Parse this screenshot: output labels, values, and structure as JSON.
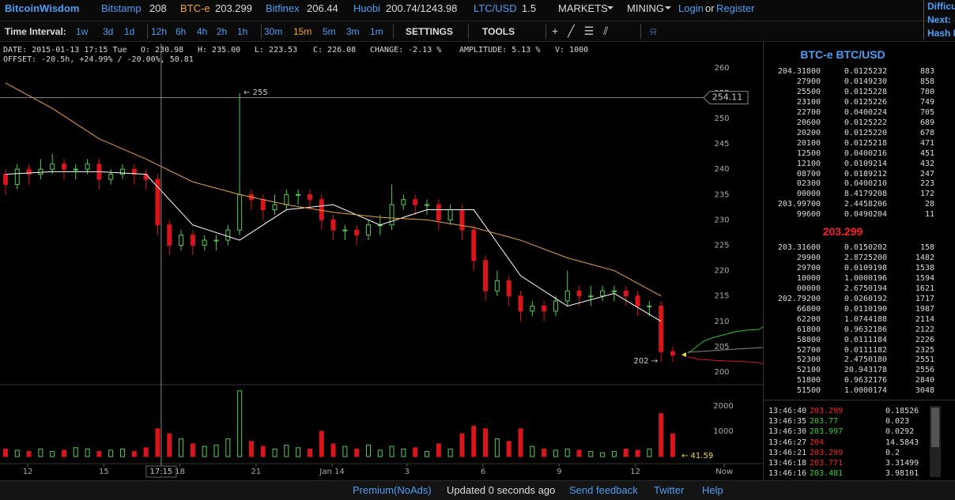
{
  "header": {
    "brand": "BitcoinWisdom",
    "markets": [
      {
        "name": "Bitstamp",
        "price": "208"
      },
      {
        "name": "BTC-e",
        "price": "203.299"
      },
      {
        "name": "Bitfinex",
        "price": "206.44"
      },
      {
        "name": "Huobi",
        "price": "200.74/1243.98"
      },
      {
        "name": "LTC/USD",
        "price": "1.5"
      }
    ],
    "active_market_index": 1,
    "menus": [
      "MARKETS",
      "MINING"
    ],
    "login": "Login",
    "or": "or",
    "register": "Register",
    "side_labels": [
      "Difficu",
      "Next:",
      "Hash R"
    ]
  },
  "toolbar": {
    "label": "Time Interval:",
    "intervals": [
      "1w",
      "3d",
      "1d",
      "12h",
      "6h",
      "4h",
      "2h",
      "1h",
      "30m",
      "15m",
      "5m",
      "3m",
      "1m"
    ],
    "active_interval_index": 9,
    "settings": "SETTINGS",
    "tools": "TOOLS"
  },
  "info": {
    "line1": [
      "DATE: 2015-01-13 17:15 Tue",
      "O: 230.98",
      "H: 235.00",
      "L: 223.53",
      "C: 226.08",
      "CHANGE: -2.13 %",
      "AMPLITUDE: 5.13 %",
      "V: 1000"
    ],
    "line2": "OFFSET: -20.5h, +24.99% / -20.00%, 50.81"
  },
  "chart_data": {
    "type": "candlestick",
    "up_color": "#4fd14f",
    "down_color": "#d9141b",
    "open": [
      239,
      237,
      240,
      239,
      240,
      241,
      240,
      240,
      241,
      238,
      239,
      240,
      239,
      238,
      229,
      225,
      227,
      225,
      226,
      226,
      228,
      235,
      234,
      232,
      233,
      235,
      235,
      234,
      230,
      228,
      228,
      227,
      229,
      229,
      233,
      234,
      233,
      233,
      230,
      232,
      228,
      222,
      216,
      218,
      215,
      212,
      213,
      212,
      214,
      216,
      215,
      215,
      216,
      216,
      215,
      213,
      213,
      204
    ],
    "high": [
      240,
      241,
      241,
      242,
      243,
      242,
      241,
      242,
      242,
      240,
      241,
      241,
      240,
      239,
      230,
      228,
      228,
      227,
      227,
      229,
      255,
      236,
      235,
      235,
      236,
      236,
      236,
      235,
      231,
      229,
      229,
      230,
      231,
      237,
      235,
      235,
      234,
      234,
      233,
      233,
      229,
      223,
      220,
      219,
      216,
      214,
      214,
      215,
      220,
      217,
      217,
      217,
      217,
      217,
      216,
      214,
      214,
      205
    ],
    "low": [
      235,
      236,
      237,
      238,
      239,
      238,
      238,
      239,
      236,
      237,
      238,
      237,
      236,
      227,
      223,
      224,
      223,
      224,
      224,
      225,
      227,
      232,
      230,
      231,
      232,
      233,
      232,
      228,
      226,
      226,
      225,
      226,
      227,
      228,
      232,
      231,
      231,
      228,
      229,
      226,
      220,
      214,
      215,
      213,
      210,
      211,
      210,
      211,
      213,
      213,
      213,
      214,
      214,
      213,
      211,
      211,
      202,
      202
    ],
    "close": [
      237,
      240,
      239,
      240,
      241,
      240,
      240,
      241,
      238,
      239,
      240,
      239,
      238,
      229,
      225,
      227,
      225,
      226,
      226,
      228,
      235,
      234,
      232,
      233,
      235,
      235,
      234,
      230,
      228,
      228,
      227,
      229,
      229,
      233,
      234,
      233,
      233,
      230,
      232,
      228,
      222,
      216,
      218,
      215,
      212,
      213,
      212,
      214,
      216,
      215,
      215,
      216,
      216,
      215,
      213,
      213,
      204,
      203.3
    ],
    "volume": [
      300,
      250,
      200,
      300,
      200,
      250,
      350,
      300,
      200,
      250,
      300,
      200,
      350,
      1100,
      900,
      700,
      500,
      400,
      450,
      700,
      2600,
      600,
      400,
      300,
      450,
      350,
      300,
      1000,
      500,
      400,
      300,
      450,
      250,
      400,
      300,
      350,
      200,
      500,
      300,
      900,
      1200,
      1100,
      700,
      600,
      1100,
      400,
      300,
      250,
      300,
      250,
      200,
      150,
      200,
      300,
      250,
      300,
      1700,
      900
    ],
    "overlays": [
      {
        "color": "#ffffff",
        "x": [
          0,
          4,
          8,
          12,
          16,
          20,
          24,
          28,
          32,
          36,
          40,
          44,
          48,
          52,
          56
        ],
        "values": [
          239,
          239.5,
          239.5,
          239,
          229,
          226,
          232,
          233,
          229,
          232,
          232,
          219,
          213,
          215.5,
          210
        ]
      },
      {
        "color": "#f0a040",
        "x": [
          0,
          4,
          8,
          12,
          16,
          20,
          24,
          28,
          32,
          36,
          40,
          44,
          48,
          52,
          56
        ],
        "values": [
          257,
          252,
          246,
          242,
          237.5,
          235,
          233,
          231.5,
          230.5,
          230,
          228.5,
          226,
          222.5,
          220,
          215
        ]
      }
    ],
    "xlim": [
      -0.47,
      64.7
    ],
    "ylim": [
      197.5,
      264.8
    ],
    "yticks": [
      200,
      205,
      210,
      215,
      220,
      225,
      230,
      235,
      240,
      245,
      250,
      255,
      260
    ],
    "volume_lim": [
      0,
      2750
    ],
    "volume_ticks": [
      1000,
      2000
    ],
    "xticks": [
      {
        "value": 1.9,
        "label": "12"
      },
      {
        "value": 8.4,
        "label": "15"
      },
      {
        "value": 14.9,
        "label": "18"
      },
      {
        "value": 21.4,
        "label": "21"
      },
      {
        "value": 27.9,
        "label": "Jan 14"
      },
      {
        "value": 34.3,
        "label": "3"
      },
      {
        "value": 40.8,
        "label": "6"
      },
      {
        "value": 47.3,
        "label": "9"
      },
      {
        "value": 53.8,
        "label": "12"
      },
      {
        "value": 61.4,
        "label": "Now"
      }
    ],
    "grid": false,
    "crosshair": {
      "x": 13.3,
      "x_label": "17:15",
      "y": 254.11
    },
    "annotations": {
      "high": "← 255",
      "low": "202 →",
      "volume": "← 41.59"
    }
  },
  "order_book": {
    "title": "BTC-e BTC/USD",
    "asks": [
      [
        "204.31800",
        "0.0125",
        "232",
        "883"
      ],
      [
        "27900",
        "0.0149",
        "230",
        "858"
      ],
      [
        "25500",
        "0.0125",
        "228",
        "780"
      ],
      [
        "23100",
        "0.0125",
        "226",
        "749"
      ],
      [
        "22700",
        "0.0400",
        "224",
        "705"
      ],
      [
        "20600",
        "0.0125",
        "222",
        "689"
      ],
      [
        "20200",
        "0.0125",
        "220",
        "678"
      ],
      [
        "20100",
        "0.0125",
        "218",
        "471"
      ],
      [
        "12500",
        "0.0400",
        "216",
        "451"
      ],
      [
        "12100",
        "0.0109",
        "214",
        "432"
      ],
      [
        "08700",
        "0.0189",
        "212",
        "247"
      ],
      [
        "02300",
        "0.0400",
        "210",
        "223"
      ],
      [
        "00000",
        "8.4179",
        "208",
        "172"
      ],
      [
        "203.99700",
        "2.4458",
        "206",
        "28"
      ],
      [
        "99600",
        "0.0490",
        "204",
        "11"
      ]
    ],
    "last_price": "203.299",
    "bids": [
      [
        "203.31600",
        "0.0150",
        "202",
        "158"
      ],
      [
        "29900",
        "2.8725",
        "200",
        "1482"
      ],
      [
        "29700",
        "0.0109",
        "198",
        "1538"
      ],
      [
        "10000",
        "1.0000",
        "196",
        "1594"
      ],
      [
        "00000",
        "2.6750",
        "194",
        "1621"
      ],
      [
        "202.79200",
        "0.0260",
        "192",
        "1717"
      ],
      [
        "66800",
        "0.0110",
        "190",
        "1987"
      ],
      [
        "62200",
        "1.0744",
        "188",
        "2114"
      ],
      [
        "61800",
        "0.9632",
        "186",
        "2122"
      ],
      [
        "58800",
        "0.0111",
        "184",
        "2226"
      ],
      [
        "52700",
        "0.0111",
        "182",
        "2325"
      ],
      [
        "52300",
        "2.4750",
        "180",
        "2551"
      ],
      [
        "52100",
        "20.943",
        "178",
        "2556"
      ],
      [
        "51800",
        "0.9632",
        "176",
        "2840"
      ],
      [
        "51500",
        "1.0000",
        "174",
        "3048"
      ]
    ]
  },
  "trades": [
    {
      "time": "13:46:40",
      "price": "203.299",
      "amount": "0.18526",
      "side": "sell"
    },
    {
      "time": "13:46:35",
      "price": "203.77",
      "amount": "0.023",
      "side": "buy"
    },
    {
      "time": "13:46:30",
      "price": "203.997",
      "amount": "0.0292",
      "side": "buy"
    },
    {
      "time": "13:46:27",
      "price": "204",
      "amount": "14.5843",
      "side": "sell"
    },
    {
      "time": "13:46:21",
      "price": "203.299",
      "amount": "0.2",
      "side": "sell"
    },
    {
      "time": "13:46:18",
      "price": "203.771",
      "amount": "3.31499",
      "side": "sell"
    },
    {
      "time": "13:46:16",
      "price": "203.481",
      "amount": "3.98101",
      "side": "buy"
    }
  ],
  "footer": {
    "links": [
      "Premium(NoAds)",
      "Updated 0 seconds ago",
      "Send feedback",
      "Twitter",
      "Help"
    ]
  }
}
